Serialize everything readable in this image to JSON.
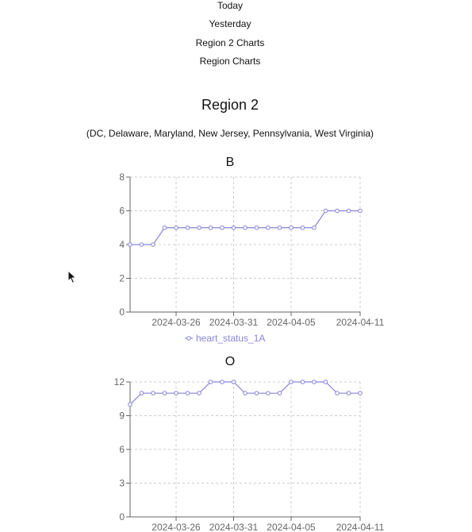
{
  "nav": {
    "items": [
      {
        "label": "Today"
      },
      {
        "label": "Yesterday"
      },
      {
        "label": "Region 2 Charts"
      },
      {
        "label": "Region Charts"
      }
    ]
  },
  "region": {
    "title": "Region 2",
    "subtitle": "(DC, Delaware, Maryland, New Jersey, Pennsylvania, West Virginia)"
  },
  "colors": {
    "series": "#8884d8",
    "grid": "#cccccc",
    "axis": "#666666"
  },
  "chart_data": [
    {
      "type": "line",
      "title": "B",
      "x": [
        "2024-03-22",
        "2024-03-23",
        "2024-03-24",
        "2024-03-25",
        "2024-03-26",
        "2024-03-27",
        "2024-03-28",
        "2024-03-29",
        "2024-03-30",
        "2024-03-31",
        "2024-04-01",
        "2024-04-02",
        "2024-04-03",
        "2024-04-04",
        "2024-04-05",
        "2024-04-06",
        "2024-04-07",
        "2024-04-08",
        "2024-04-09",
        "2024-04-10",
        "2024-04-11"
      ],
      "series": [
        {
          "name": "heart_status_1A",
          "values": [
            4,
            4,
            4,
            5,
            5,
            5,
            5,
            5,
            5,
            5,
            5,
            5,
            5,
            5,
            5,
            5,
            5,
            6,
            6,
            6,
            6
          ]
        }
      ],
      "xticks": [
        "2024-03-26",
        "2024-03-31",
        "2024-04-05",
        "2024-04-11"
      ],
      "yticks": [
        0,
        2,
        4,
        6,
        8
      ],
      "ylim": [
        0,
        8
      ],
      "grid": true,
      "legend": "bottom"
    },
    {
      "type": "line",
      "title": "O",
      "x": [
        "2024-03-22",
        "2024-03-23",
        "2024-03-24",
        "2024-03-25",
        "2024-03-26",
        "2024-03-27",
        "2024-03-28",
        "2024-03-29",
        "2024-03-30",
        "2024-03-31",
        "2024-04-01",
        "2024-04-02",
        "2024-04-03",
        "2024-04-04",
        "2024-04-05",
        "2024-04-06",
        "2024-04-07",
        "2024-04-08",
        "2024-04-09",
        "2024-04-10",
        "2024-04-11"
      ],
      "series": [
        {
          "values": [
            10,
            11,
            11,
            11,
            11,
            11,
            11,
            12,
            12,
            12,
            11,
            11,
            11,
            11,
            12,
            12,
            12,
            12,
            11,
            11,
            11
          ]
        }
      ],
      "xticks": [
        "2024-03-26",
        "2024-03-31",
        "2024-04-05",
        "2024-04-11"
      ],
      "yticks": [
        0,
        3,
        6,
        9,
        12
      ],
      "ylim": [
        0,
        12
      ],
      "grid": true
    }
  ]
}
